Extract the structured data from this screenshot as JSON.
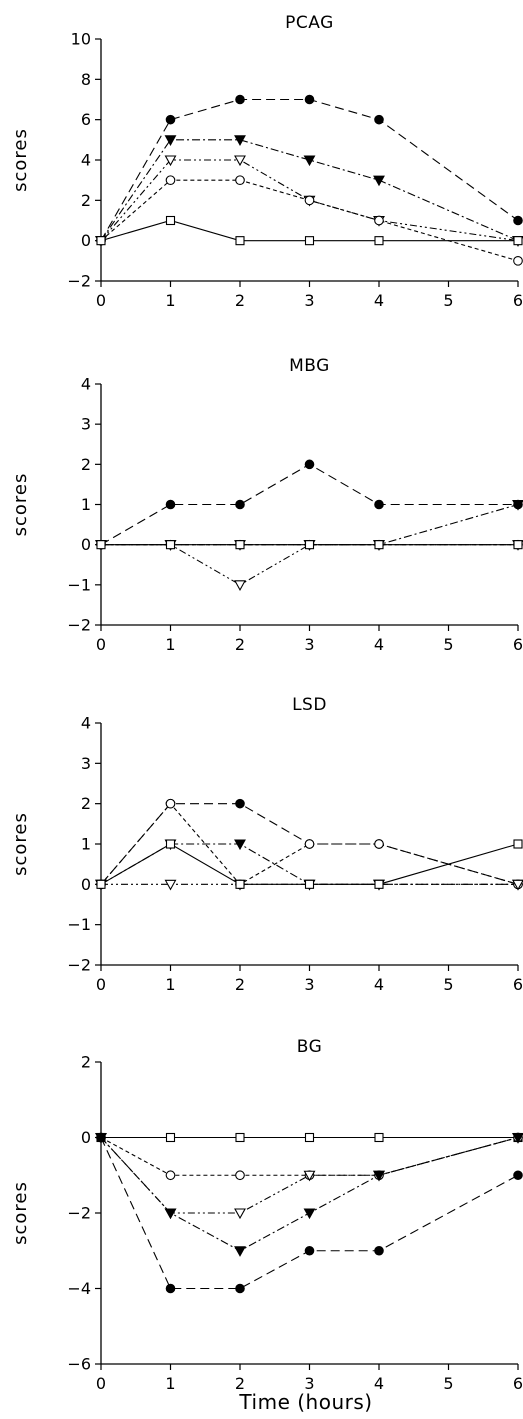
{
  "figure": {
    "x_axis_label": "Time (hours)"
  },
  "chart_data": [
    {
      "type": "line",
      "title": "PCAG",
      "xlabel": "",
      "ylabel": "scores",
      "x": [
        0,
        1,
        2,
        3,
        4,
        6
      ],
      "xticks": [
        "0",
        "1",
        "2",
        "3",
        "4",
        "5",
        "6"
      ],
      "xlim": [
        0,
        6
      ],
      "ylim": [
        -2,
        10
      ],
      "yticks": [
        "-2",
        "0",
        "2",
        "4",
        "6",
        "8",
        "10"
      ],
      "series": [
        {
          "marker": "filled-circle",
          "dash": "dashed",
          "values": [
            0,
            6,
            7,
            7,
            6,
            1
          ]
        },
        {
          "marker": "filled-triangle-down",
          "dash": "dash-dot",
          "values": [
            0,
            5,
            5,
            4,
            3,
            0
          ]
        },
        {
          "marker": "open-triangle-down",
          "dash": "dash-dot-dot",
          "values": [
            0,
            4,
            4,
            2,
            1,
            0
          ]
        },
        {
          "marker": "open-circle",
          "dash": "short-dash",
          "values": [
            0,
            3,
            3,
            2,
            1,
            -1
          ]
        },
        {
          "marker": "open-square",
          "dash": "solid",
          "values": [
            0,
            1,
            0,
            0,
            0,
            0
          ]
        }
      ]
    },
    {
      "type": "line",
      "title": "MBG",
      "xlabel": "",
      "ylabel": "scores",
      "x": [
        0,
        1,
        2,
        3,
        4,
        6
      ],
      "xticks": [
        "0",
        "1",
        "2",
        "3",
        "4",
        "5",
        "6"
      ],
      "xlim": [
        0,
        6
      ],
      "ylim": [
        -2,
        4
      ],
      "yticks": [
        "-2",
        "-1",
        "0",
        "1",
        "2",
        "3",
        "4"
      ],
      "series": [
        {
          "marker": "filled-circle",
          "dash": "dashed",
          "values": [
            0,
            1,
            1,
            2,
            1,
            1
          ]
        },
        {
          "marker": "filled-triangle-down",
          "dash": "dash-dot",
          "values": [
            0,
            0,
            0,
            0,
            0,
            1
          ]
        },
        {
          "marker": "open-triangle-down",
          "dash": "dash-dot-dot",
          "values": [
            0,
            0,
            -1,
            0,
            0,
            0
          ]
        },
        {
          "marker": "open-circle",
          "dash": "short-dash",
          "values": [
            0,
            0,
            0,
            0,
            0,
            0
          ]
        },
        {
          "marker": "open-square",
          "dash": "solid",
          "values": [
            0,
            0,
            0,
            0,
            0,
            0
          ]
        }
      ]
    },
    {
      "type": "line",
      "title": "LSD",
      "xlabel": "",
      "ylabel": "scores",
      "x": [
        0,
        1,
        2,
        3,
        4,
        6
      ],
      "xticks": [
        "0",
        "1",
        "2",
        "3",
        "4",
        "5",
        "6"
      ],
      "xlim": [
        0,
        6
      ],
      "ylim": [
        -2,
        4
      ],
      "yticks": [
        "-2",
        "-1",
        "0",
        "1",
        "2",
        "3",
        "4"
      ],
      "series": [
        {
          "marker": "filled-circle",
          "dash": "dashed",
          "values": [
            0,
            2,
            2,
            1,
            1,
            0
          ]
        },
        {
          "marker": "filled-triangle-down",
          "dash": "dash-dot",
          "values": [
            0,
            1,
            1,
            0,
            0,
            0
          ]
        },
        {
          "marker": "open-circle",
          "dash": "short-dash",
          "values": [
            0,
            2,
            0,
            1,
            1,
            0
          ]
        },
        {
          "marker": "open-triangle-down",
          "dash": "dash-dot-dot",
          "values": [
            0,
            0,
            0,
            0,
            0,
            0
          ]
        },
        {
          "marker": "open-square",
          "dash": "solid",
          "values": [
            0,
            1,
            0,
            0,
            0,
            1
          ]
        }
      ]
    },
    {
      "type": "line",
      "title": "BG",
      "xlabel": "Time (hours)",
      "ylabel": "scores",
      "x": [
        0,
        1,
        2,
        3,
        4,
        6
      ],
      "xticks": [
        "0",
        "1",
        "2",
        "3",
        "4",
        "5",
        "6"
      ],
      "xlim": [
        0,
        6
      ],
      "ylim": [
        -6,
        2
      ],
      "yticks": [
        "-6",
        "-4",
        "-2",
        "0",
        "2"
      ],
      "series": [
        {
          "marker": "open-square",
          "dash": "solid",
          "values": [
            0,
            0,
            0,
            0,
            0,
            0
          ]
        },
        {
          "marker": "open-circle",
          "dash": "short-dash",
          "values": [
            0,
            -1,
            -1,
            -1,
            -1,
            0
          ]
        },
        {
          "marker": "open-triangle-down",
          "dash": "dash-dot-dot",
          "values": [
            0,
            -2,
            -2,
            -1,
            -1,
            0
          ]
        },
        {
          "marker": "filled-triangle-down",
          "dash": "dash-dot",
          "values": [
            0,
            -2,
            -3,
            -2,
            -1,
            0
          ]
        },
        {
          "marker": "filled-circle",
          "dash": "dashed",
          "values": [
            0,
            -4,
            -4,
            -3,
            -3,
            -1
          ]
        }
      ]
    }
  ]
}
